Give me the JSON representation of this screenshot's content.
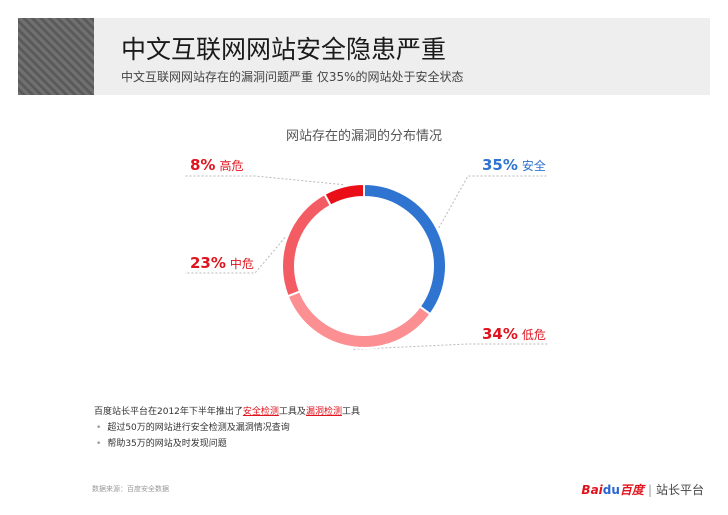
{
  "header": {
    "title": "中文互联网网站安全隐患严重",
    "subtitle": "中文互联网网站存在的漏洞问题严重   仅35%的网站处于安全状态"
  },
  "chart_data": {
    "type": "pie",
    "title": "网站存在的漏洞的分布情况",
    "slices": [
      {
        "name": "安全",
        "value": 35,
        "label": "35%",
        "color": "#2f74d0",
        "label_color": "#2f74d0"
      },
      {
        "name": "低危",
        "value": 34,
        "label": "34%",
        "color": "#fc8f91",
        "label_color": "#e0141e"
      },
      {
        "name": "中危",
        "value": 23,
        "label": "23%",
        "color": "#f45c63",
        "label_color": "#e0141e"
      },
      {
        "name": "高危",
        "value": 8,
        "label": "8%",
        "color": "#ea0e16",
        "label_color": "#e0141e"
      }
    ]
  },
  "notes": {
    "intro_prefix": "百度站长平台在2012年下半年推出了",
    "tool1": "安全检测",
    "tool_mid": "工具及",
    "tool2": "漏洞检测",
    "intro_suffix": "工具",
    "bullet1": "超过50万的网站进行安全检测及漏洞情况查询",
    "bullet2": "帮助35万的网站及时发现问题"
  },
  "source": "数据来源：百度安全数据",
  "brand": {
    "logo_left": "Bai",
    "logo_paw": "du",
    "logo_right": "百度",
    "separator": "|",
    "platform": "站长平台"
  }
}
